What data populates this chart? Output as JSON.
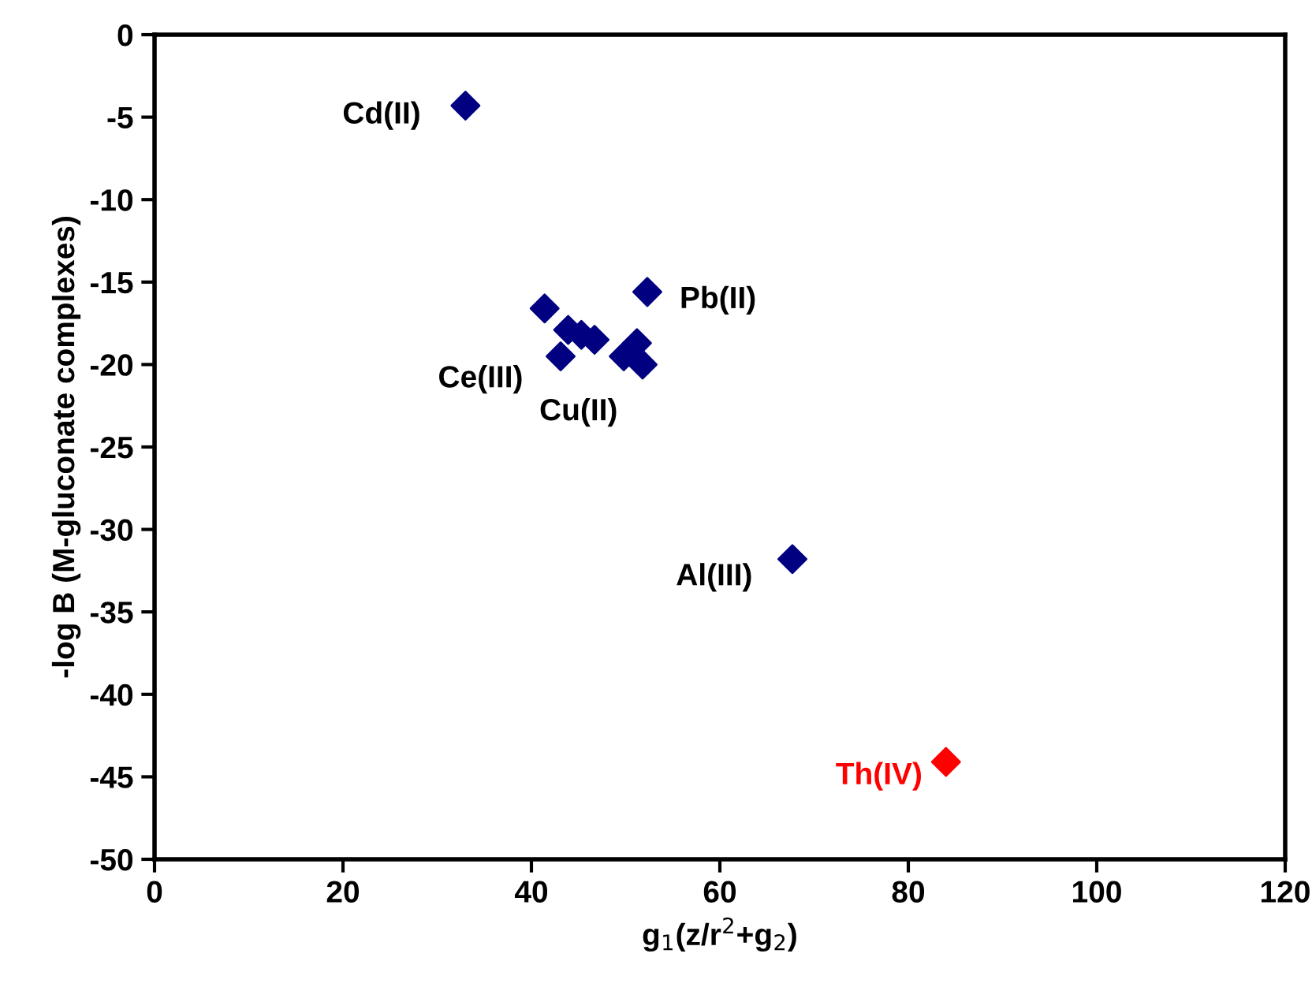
{
  "chart_data": {
    "type": "scatter",
    "xlabel": "g$_{1}$(z/r$^{2}$+g$_{2}$)",
    "ylabel": "-log B (M-gluconate complexes)",
    "xlim": [
      0,
      120
    ],
    "ylim": [
      -50,
      0
    ],
    "xticks": [
      0,
      20,
      40,
      60,
      80,
      100,
      120
    ],
    "yticks": [
      -50,
      -45,
      -40,
      -35,
      -30,
      -25,
      -20,
      -15,
      -10,
      -5,
      0
    ],
    "marker": "diamond",
    "grid": false,
    "legend": false,
    "series": [
      {
        "color": "#000080",
        "x": [
          33,
          41.4,
          43.9,
          45.3,
          46.7,
          43.1,
          49.8,
          51.2,
          51.8,
          52.3,
          67.7
        ],
        "values": [
          -4.3,
          -16.6,
          -17.9,
          -18.2,
          -18.5,
          -19.5,
          -19.5,
          -18.7,
          -20.0,
          -15.6,
          -31.8
        ]
      },
      {
        "name": "Th(IV)",
        "color": "#ff0000",
        "x": [
          84
        ],
        "values": [
          -44.1
        ]
      }
    ],
    "annotations": [
      {
        "text": "Cd(II)",
        "x": 33,
        "y": -4.3
      },
      {
        "text": "Pb(II)",
        "x": 52.3,
        "y": -15.6
      },
      {
        "text": "Ce(III)",
        "x": 43.1,
        "y": -19.5
      },
      {
        "text": "Cu(II)",
        "x": 49.8,
        "y": -19.5
      },
      {
        "text": "Al(III)",
        "x": 67.7,
        "y": -31.8
      }
    ]
  }
}
